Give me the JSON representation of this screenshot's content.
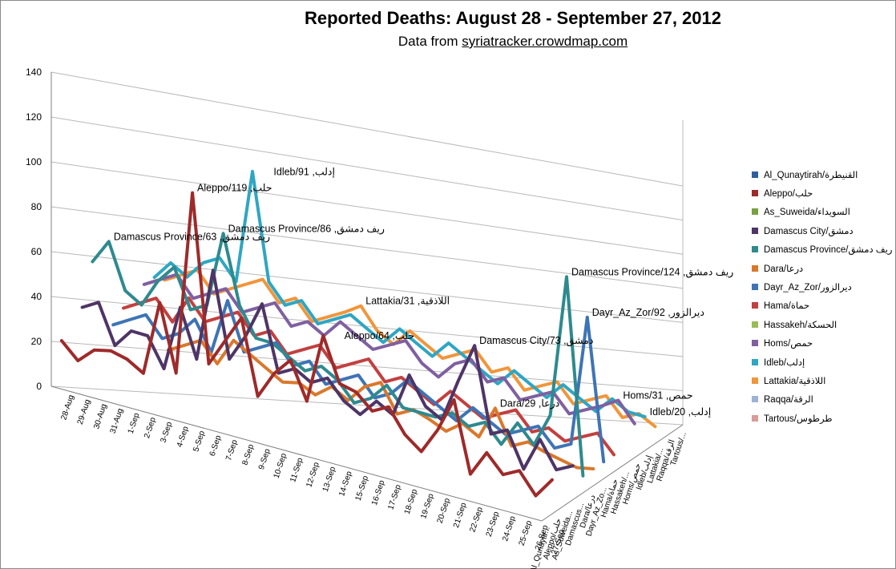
{
  "chart_data": {
    "type": "line",
    "title": "Reported Deaths: August 28 - September 27, 2012",
    "subtitle_prefix": "Data from ",
    "subtitle_link": "syriatracker.crowdmap.com",
    "ylim": [
      0,
      140
    ],
    "yticks": [
      0,
      20,
      40,
      60,
      80,
      100,
      120,
      140
    ],
    "grid": true,
    "legend_position": "right",
    "x": [
      "28-Aug",
      "29-Aug",
      "30-Aug",
      "31-Aug",
      "1-Sep",
      "2-Sep",
      "3-Sep",
      "4-Sep",
      "5-Sep",
      "6-Sep",
      "7-Sep",
      "8-Sep",
      "9-Sep",
      "10-Sep",
      "11-Sep",
      "12-Sep",
      "13-Sep",
      "14-Sep",
      "15-Sep",
      "16-Sep",
      "17-Sep",
      "18-Sep",
      "19-Sep",
      "20-Sep",
      "21-Sep",
      "22-Sep",
      "23-Sep",
      "24-Sep",
      "25-Sep",
      "26-Sep",
      "27-Sep"
    ],
    "depth_labels": [
      "Al_Qunaytir...",
      "Aleppo/حلب",
      "As_Suweida...",
      "Damascus...",
      "Dara/درعا",
      "Dayr_Az_Zo...",
      "Hama/حماة",
      "Hassakeh/...",
      "Homs/حمص",
      "Idleb/إدلب",
      "Lattakia/...",
      "Raqqa/الرقة",
      "Tartous/..."
    ],
    "series": [
      {
        "name": "Al_Qunaytirah/القنيطرة",
        "color": "#2E5E9E",
        "values": [
          null,
          null,
          null,
          null,
          null,
          null,
          null,
          null,
          null,
          null,
          null,
          null,
          null,
          null,
          null,
          null,
          null,
          3,
          null,
          null,
          null,
          null,
          null,
          null,
          null,
          null,
          null,
          null,
          null,
          null,
          null
        ]
      },
      {
        "name": "Aleppo/حلب",
        "color": "#9E2A2A",
        "values": [
          20,
          12,
          20,
          22,
          20,
          15,
          55,
          20,
          119,
          30,
          45,
          60,
          20,
          35,
          45,
          25,
          64,
          40,
          38,
          30,
          35,
          22,
          15,
          30,
          50,
          10,
          25,
          15,
          20,
          8,
          20
        ]
      },
      {
        "name": "As_Suweida/السويداء",
        "color": "#77A040",
        "values": [
          null,
          null,
          null,
          null,
          null,
          null,
          null,
          null,
          null,
          null,
          null,
          null,
          null,
          null,
          null,
          null,
          null,
          null,
          null,
          null,
          2,
          null,
          null,
          null,
          null,
          null,
          null,
          null,
          null,
          null,
          null
        ]
      },
      {
        "name": "Damascus City/دمشق",
        "color": "#4E3566",
        "values": [
          30,
          35,
          15,
          25,
          25,
          10,
          45,
          20,
          70,
          25,
          40,
          60,
          25,
          30,
          25,
          30,
          20,
          15,
          25,
          20,
          45,
          30,
          25,
          50,
          73,
          25,
          30,
          10,
          30,
          15,
          20
        ]
      },
      {
        "name": "Damascus Province/ريف دمشق",
        "color": "#2E8A8E",
        "values": [
          50,
          63,
          40,
          35,
          50,
          60,
          40,
          45,
          86,
          50,
          35,
          35,
          30,
          25,
          30,
          25,
          15,
          20,
          30,
          20,
          20,
          20,
          25,
          20,
          25,
          15,
          30,
          20,
          40,
          124,
          10
        ]
      },
      {
        "name": "Dara/درعا",
        "color": "#D9782C",
        "values": [
          null,
          null,
          null,
          null,
          10,
          15,
          20,
          10,
          25,
          20,
          15,
          10,
          12,
          8,
          15,
          10,
          20,
          25,
          10,
          15,
          12,
          8,
          15,
          10,
          29,
          10,
          15,
          12,
          10,
          8,
          10
        ]
      },
      {
        "name": "Dayr_Az_Zor/ديرالزور",
        "color": "#3E74B5",
        "values": [
          10,
          15,
          20,
          10,
          15,
          25,
          10,
          40,
          15,
          20,
          25,
          15,
          20,
          10,
          15,
          20,
          10,
          15,
          25,
          20,
          15,
          10,
          20,
          15,
          10,
          15,
          20,
          10,
          15,
          92,
          10
        ]
      },
      {
        "name": "Hama/حماة",
        "color": "#C24040",
        "values": [
          15,
          20,
          25,
          15,
          30,
          20,
          25,
          30,
          20,
          25,
          15,
          20,
          25,
          15,
          20,
          25,
          15,
          20,
          15,
          10,
          20,
          15,
          10,
          15,
          20,
          10,
          15,
          10,
          15,
          20,
          10
        ]
      },
      {
        "name": "Hassakeh/الحسكة",
        "color": "#9BBB59",
        "values": [
          null,
          null,
          null,
          null,
          null,
          null,
          null,
          null,
          null,
          null,
          null,
          null,
          null,
          null,
          null,
          null,
          null,
          null,
          null,
          null,
          3,
          null,
          null,
          null,
          null,
          null,
          null,
          null,
          null,
          null,
          null
        ]
      },
      {
        "name": "Homs/حمص",
        "color": "#7F60A0",
        "values": [
          20,
          25,
          30,
          20,
          25,
          30,
          20,
          25,
          30,
          20,
          25,
          20,
          30,
          25,
          20,
          25,
          30,
          20,
          15,
          25,
          30,
          20,
          25,
          15,
          20,
          25,
          15,
          20,
          25,
          31,
          20
        ]
      },
      {
        "name": "Idleb/إدلب",
        "color": "#2FA6C2",
        "values": [
          20,
          30,
          25,
          35,
          40,
          30,
          91,
          35,
          25,
          30,
          20,
          25,
          30,
          25,
          20,
          30,
          25,
          20,
          30,
          25,
          20,
          15,
          25,
          20,
          15,
          25,
          20,
          15,
          25,
          20,
          20
        ]
      },
      {
        "name": "Lattakia/اللاذقية",
        "color": "#F0963C",
        "values": [
          15,
          20,
          25,
          15,
          20,
          25,
          30,
          20,
          25,
          15,
          20,
          25,
          31,
          20,
          15,
          25,
          20,
          15,
          20,
          25,
          15,
          20,
          10,
          15,
          20,
          10,
          15,
          20,
          10,
          15,
          10
        ]
      },
      {
        "name": "Raqqa/الرقة",
        "color": "#9DB3D6",
        "values": [
          null,
          null,
          null,
          null,
          null,
          null,
          null,
          null,
          null,
          null,
          null,
          null,
          null,
          null,
          null,
          null,
          null,
          null,
          null,
          null,
          null,
          null,
          null,
          null,
          null,
          null,
          null,
          null,
          25,
          null,
          null
        ]
      },
      {
        "name": "Tartous/طرطوس",
        "color": "#D99B9B",
        "values": [
          null,
          null,
          null,
          null,
          null,
          null,
          null,
          null,
          null,
          null,
          null,
          null,
          null,
          null,
          null,
          null,
          null,
          null,
          null,
          null,
          null,
          null,
          null,
          null,
          null,
          null,
          null,
          null,
          null,
          null,
          null
        ]
      }
    ],
    "annotations": [
      {
        "text": "Aleppo/119 ,حلب",
        "series": "Aleppo/حلب",
        "x": "5-Sep",
        "y": 119
      },
      {
        "text": "Idleb/91 ,إدلب",
        "series": "Idleb/إدلب",
        "x": "4-Sep",
        "y": 91
      },
      {
        "text": "Damascus Province/86 ,ريف دمشق",
        "series": "Damascus Province/ريف دمشق",
        "x": "5-Sep",
        "y": 86
      },
      {
        "text": "Damascus Province/63 ,ريف دمشق",
        "series": "Damascus Province/ريف دمشق",
        "x": "29-Aug",
        "y": 63
      },
      {
        "text": "Aleppo/64 ,حلب",
        "series": "Aleppo/حلب",
        "x": "14-Sep",
        "y": 64
      },
      {
        "text": "Lattakia/31 ,اللاذقية",
        "series": "Lattakia/اللاذقية",
        "x": "9-Sep",
        "y": 31
      },
      {
        "text": "Damascus City/73 ,دمشق",
        "series": "Damascus City/دمشق",
        "x": "21-Sep",
        "y": 73
      },
      {
        "text": "Dara/29 ,درعا",
        "series": "Dara/درعا",
        "x": "21-Sep",
        "y": 29
      },
      {
        "text": "Damascus Province/124 ,ريف دمشق",
        "series": "Damascus Province/ريف دمشق",
        "x": "26-Sep",
        "y": 124
      },
      {
        "text": "Dayr_Az_Zor/92 ,ديرالزور",
        "series": "Dayr_Az_Zor/ديرالزور",
        "x": "26-Sep",
        "y": 92
      },
      {
        "text": "Homs/31 ,حمص",
        "series": "Homs/حمص",
        "x": "26-Sep",
        "y": 31
      },
      {
        "text": "Idleb/20 ,إدلب",
        "series": "Idleb/إدلب",
        "x": "27-Sep",
        "y": 20
      }
    ]
  }
}
